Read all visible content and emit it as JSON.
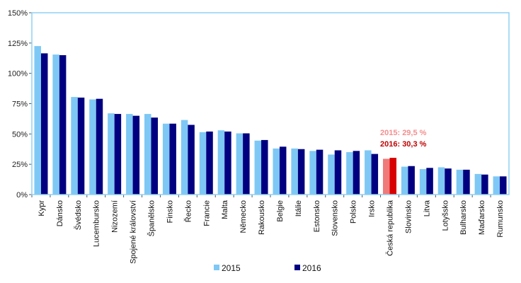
{
  "chart_data": {
    "type": "bar",
    "title": "",
    "xlabel": "",
    "ylabel": "",
    "ylim": [
      0,
      150
    ],
    "yticks": [
      0,
      25,
      50,
      75,
      100,
      125,
      150
    ],
    "ytick_labels": [
      "0%",
      "25%",
      "50%",
      "75%",
      "100%",
      "125%",
      "150%"
    ],
    "grid": false,
    "legend_position": "bottom",
    "categories": [
      "Kypr",
      "Dánsko",
      "Švédsko",
      "Lucembursko",
      "Nizozemí",
      "Spojené království",
      "Španělsko",
      "Finsko",
      "Řecko",
      "Francie",
      "Malta",
      "Německo",
      "Rakousko",
      "Belgie",
      "Itálie",
      "Estonsko",
      "Slovensko",
      "Polsko",
      "Irsko",
      "Česká republika",
      "Slovinsko",
      "Litva",
      "Lotyšsko",
      "Bulharsko",
      "Maďarsko",
      "Rumunsko"
    ],
    "series": [
      {
        "name": "2015",
        "color": "#7ec8f5",
        "values": [
          122.5,
          115.5,
          80.5,
          78.5,
          67,
          66.5,
          66.5,
          58.5,
          61.5,
          51.5,
          53,
          50.5,
          44.5,
          38,
          38,
          36,
          33,
          35,
          36.5,
          29.5,
          23,
          21,
          22.5,
          20.5,
          17,
          15
        ]
      },
      {
        "name": "2016",
        "color": "#000080",
        "values": [
          116.5,
          115,
          80,
          79,
          66.5,
          65,
          63.5,
          58.5,
          57.5,
          52,
          52,
          50.5,
          45,
          39.5,
          37.5,
          37,
          36.5,
          36,
          33.5,
          30.3,
          23.5,
          22,
          21.5,
          20.5,
          16.5,
          15
        ]
      }
    ],
    "highlight": {
      "category": "Česká republika",
      "colors": {
        "2015": "#f07a7a",
        "2016": "#d80000"
      }
    },
    "annotations": [
      {
        "text": "2015: 29,5 %",
        "color": "#f58e8e"
      },
      {
        "text": "2016: 30,3 %",
        "color": "#c00000"
      }
    ]
  }
}
